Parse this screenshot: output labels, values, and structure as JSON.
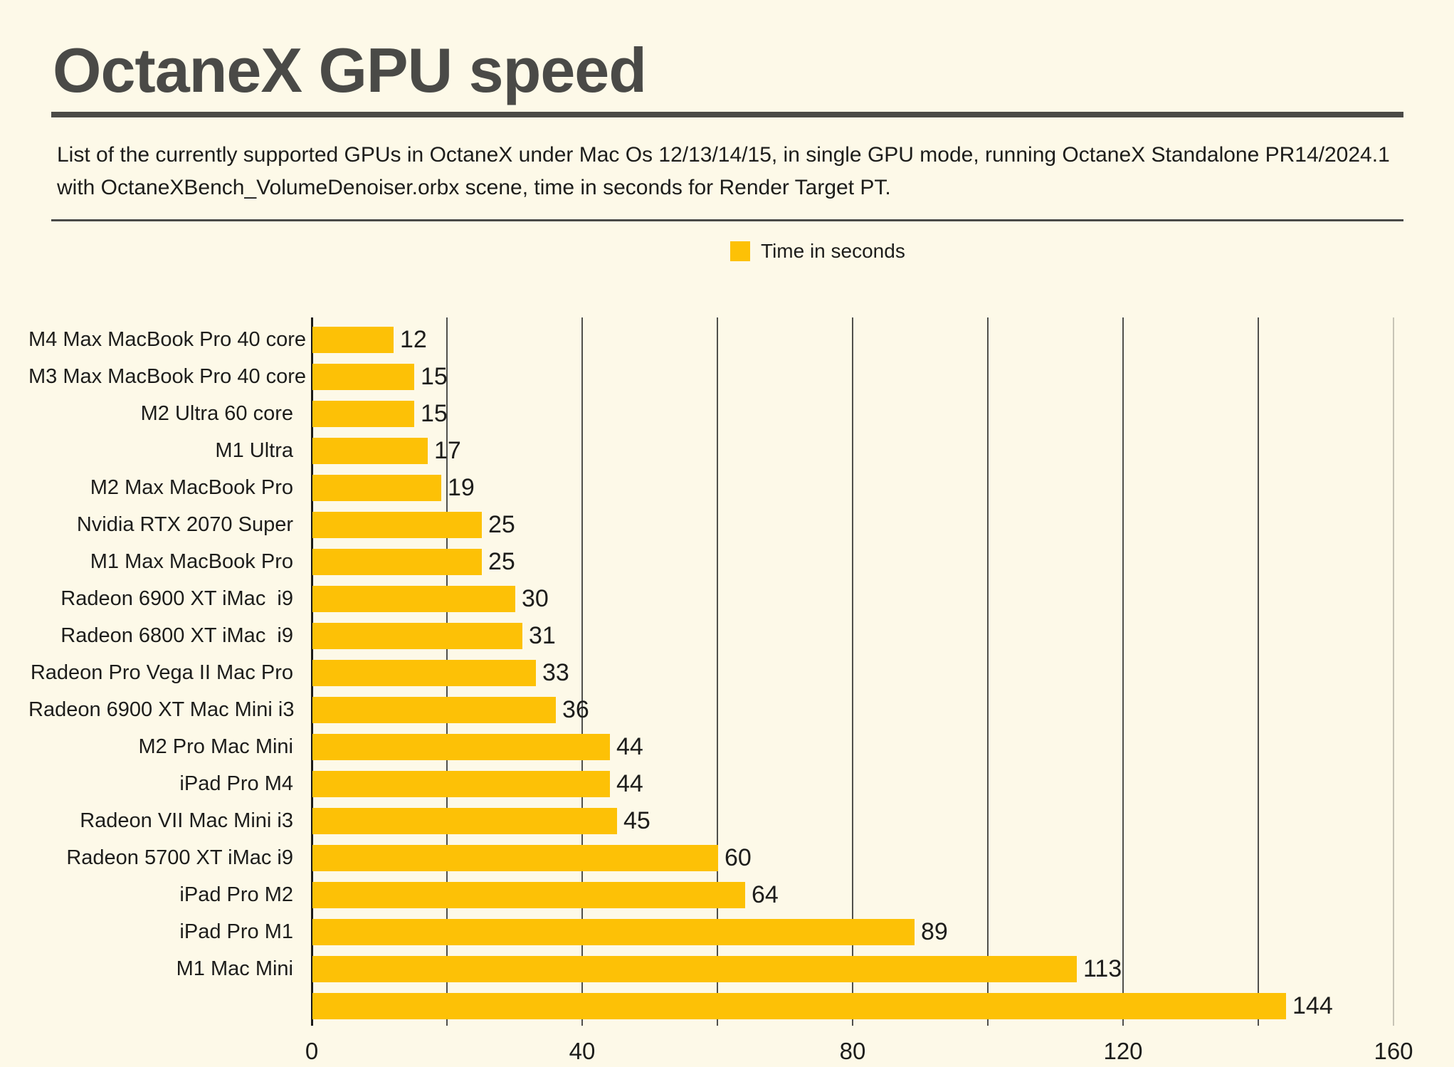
{
  "page": {
    "background": "#FDF9E8"
  },
  "header": {
    "title": "OctaneX GPU speed",
    "subtitle_lines": [
      "List of the currently supported GPUs in OctaneX under Mac Os 12/13/14/15, in single GPU mode, running OctaneX Standalone PR14/2024.1",
      "with OctaneXBench_VolumeDenoiser.orbx scene, time in seconds for Render Target PT."
    ]
  },
  "legend": {
    "label": "Time in seconds",
    "swatch_color": "#FDC106"
  },
  "colors": {
    "background": "#FDF9E8",
    "bar": "#FDC106",
    "title_and_rules": "#4A4A47",
    "text": "#1D1D1B",
    "gridline": "#50504C",
    "right_edge_gridline": "#C7C4B6",
    "axis": "#1A1A18"
  },
  "chart_data": {
    "type": "bar",
    "orientation": "horizontal",
    "title": "OctaneX GPU speed",
    "legend_label": "Time in seconds",
    "categories": [
      "M4 Max MacBook Pro 40 core",
      "M3 Max MacBook Pro 40 core",
      "M2 Ultra 60 core",
      "M1 Ultra",
      "M2 Max MacBook Pro",
      "Nvidia RTX 2070 Super",
      "M1 Max MacBook Pro",
      "Radeon 6900 XT iMac  i9",
      "Radeon 6800 XT iMac  i9",
      "Radeon Pro Vega II Mac Pro",
      "Radeon 6900 XT Mac Mini i3",
      "M2 Pro Mac Mini",
      "iPad Pro M4",
      "Radeon VII Mac Mini i3",
      "Radeon 5700 XT iMac i9",
      "iPad Pro M2",
      "iPad Pro M1",
      "M1 Mac Mini",
      ""
    ],
    "values": [
      12,
      15,
      15,
      17,
      19,
      25,
      25,
      30,
      31,
      33,
      36,
      44,
      44,
      45,
      60,
      64,
      89,
      113,
      144
    ],
    "value_labels": [
      "12",
      "15",
      "15",
      "17",
      "19",
      "25",
      "25",
      "30",
      "31",
      "33",
      "36",
      "44",
      "44",
      "45",
      "60",
      "64",
      "89",
      "113",
      "144"
    ],
    "xlabel": "",
    "ylabel": "",
    "xlim": [
      0,
      160
    ],
    "x_gridline_step": 20,
    "x_labeled_ticks": [
      0,
      40,
      80,
      120,
      160
    ],
    "x_tick_labels": [
      "0",
      "40",
      "80",
      "120",
      "160"
    ],
    "bar_color": "#FDC106",
    "grid": "vertical gridlines every 20 units, drawn behind bars",
    "legend_position": "top center"
  }
}
